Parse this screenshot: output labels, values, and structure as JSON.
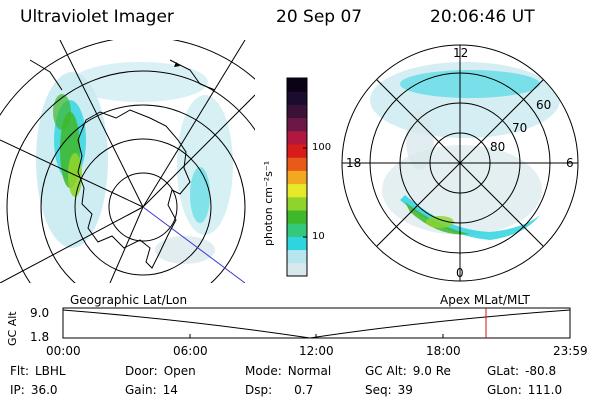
{
  "header": {
    "instrument": "Ultraviolet Imager",
    "date": "20 Sep 07",
    "time": "20:06:46 UT"
  },
  "left_map": {
    "label": "Geographic Lat/Lon"
  },
  "right_map": {
    "label": "Apex  MLat/MLT",
    "lat_labels": [
      "60",
      "70",
      "80"
    ],
    "mlt_labels": [
      "12",
      "18",
      "6",
      "0"
    ]
  },
  "colorbar": {
    "unit": "photon cm⁻²s⁻¹",
    "ticks": [
      "100",
      "10"
    ],
    "colors": [
      "#d9e8ec",
      "#b8e6ee",
      "#2ed4e0",
      "#33c87a",
      "#3fb72a",
      "#8fd42b",
      "#e8e82a",
      "#f3a91f",
      "#e85a1a",
      "#d81b1b",
      "#b2183e",
      "#6b1846",
      "#3a1238",
      "#1b0b2c",
      "#0b0218"
    ]
  },
  "altitude_plot": {
    "ylabel": "GC Alt",
    "y_ticks": [
      "9.0",
      "1.8"
    ],
    "x_ticks": [
      "00:00",
      "06:00",
      "12:00",
      "18:00",
      "23:59"
    ],
    "current_time_color": "#d01010"
  },
  "info": {
    "flt": {
      "label": "Flt:",
      "value": "LBHL"
    },
    "ip": {
      "label": "IP:",
      "value": "36.0"
    },
    "door": {
      "label": "Door:",
      "value": "Open"
    },
    "gain": {
      "label": "Gain:",
      "value": "14"
    },
    "mode": {
      "label": "Mode:",
      "value": "Normal"
    },
    "dsp": {
      "label": "Dsp:",
      "value": "0.7"
    },
    "gcalt": {
      "label": "GC Alt:",
      "value": "9.0 Re"
    },
    "seq": {
      "label": "Seq:",
      "value": "39"
    },
    "glat": {
      "label": "GLat:",
      "value": "-80.8"
    },
    "glon": {
      "label": "GLon:",
      "value": "111.0"
    }
  }
}
